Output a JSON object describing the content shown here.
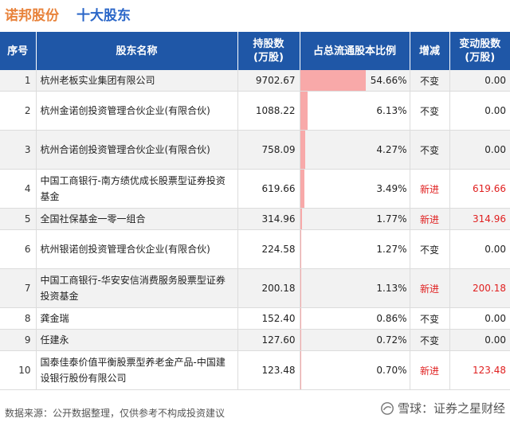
{
  "header": {
    "company": "诺邦股份",
    "title": "十大股东"
  },
  "columns": [
    "序号",
    "股东名称",
    "持股数\n(万股)",
    "占总流通股本比例",
    "增减",
    "变动股数\n(万股)"
  ],
  "rows": [
    {
      "idx": "1",
      "name": "杭州老板实业集团有限公司",
      "shares": "9702.67",
      "ratio": "54.66%",
      "ratio_value": 54.66,
      "change": "不变",
      "delta": "0.00"
    },
    {
      "idx": "2",
      "name": "杭州金诺创投资管理合伙企业(有限合伙)",
      "shares": "1088.22",
      "ratio": "6.13%",
      "ratio_value": 6.13,
      "change": "不变",
      "delta": "0.00"
    },
    {
      "idx": "3",
      "name": "杭州合诺创投资管理合伙企业(有限合伙)",
      "shares": "758.09",
      "ratio": "4.27%",
      "ratio_value": 4.27,
      "change": "不变",
      "delta": "0.00"
    },
    {
      "idx": "4",
      "name": "中国工商银行-南方绩优成长股票型证券投资基金",
      "shares": "619.66",
      "ratio": "3.49%",
      "ratio_value": 3.49,
      "change": "新进",
      "delta": "619.66"
    },
    {
      "idx": "5",
      "name": "全国社保基金一零一组合",
      "shares": "314.96",
      "ratio": "1.77%",
      "ratio_value": 1.77,
      "change": "新进",
      "delta": "314.96"
    },
    {
      "idx": "6",
      "name": "杭州银诺创投资管理合伙企业(有限合伙)",
      "shares": "224.58",
      "ratio": "1.27%",
      "ratio_value": 1.27,
      "change": "不变",
      "delta": "0.00"
    },
    {
      "idx": "7",
      "name": "中国工商银行-华安安信消费服务股票型证券投资基金",
      "shares": "200.18",
      "ratio": "1.13%",
      "ratio_value": 1.13,
      "change": "新进",
      "delta": "200.18"
    },
    {
      "idx": "8",
      "name": "龚金瑞",
      "shares": "152.40",
      "ratio": "0.86%",
      "ratio_value": 0.86,
      "change": "不变",
      "delta": "0.00"
    },
    {
      "idx": "9",
      "name": "任建永",
      "shares": "127.60",
      "ratio": "0.72%",
      "ratio_value": 0.72,
      "change": "不变",
      "delta": "0.00"
    },
    {
      "idx": "10",
      "name": "国泰佳泰价值平衡股票型养老金产品-中国建设银行股份有限公司",
      "shares": "123.48",
      "ratio": "0.70%",
      "ratio_value": 0.7,
      "change": "新进",
      "delta": "123.48"
    }
  ],
  "footer": {
    "source": "数据来源：公开数据整理，仅供参考不构成投资建议",
    "brand": "雪球：证券之星财经"
  },
  "colors": {
    "header_bg": "#1f57a7",
    "bar": "#f8a9a9",
    "new_entry": "#e02020",
    "company": "#e8823a",
    "title": "#2a66c8"
  }
}
